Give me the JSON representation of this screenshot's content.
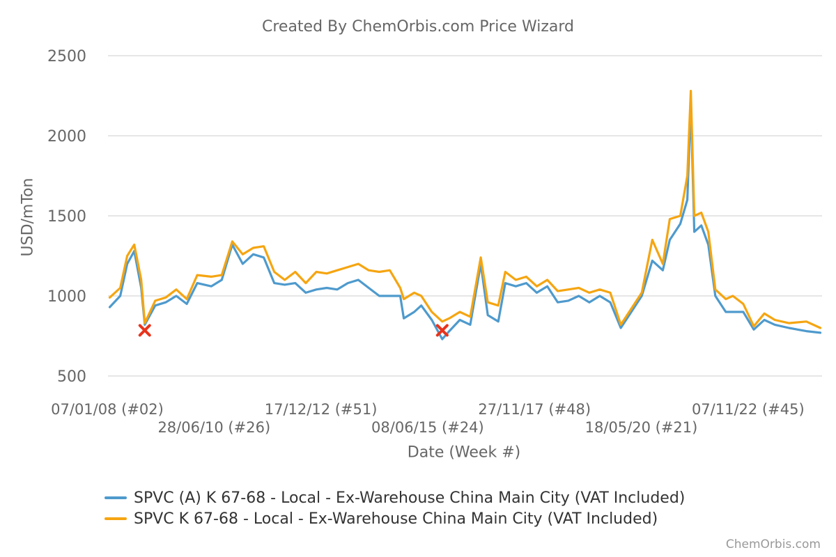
{
  "chart_data": {
    "type": "line",
    "title": "Created By ChemOrbis.com Price Wizard",
    "xlabel": "Date (Week #)",
    "ylabel": "USD/mTon",
    "ylim": [
      500,
      2500
    ],
    "yticks": [
      500,
      1000,
      1500,
      2000,
      2500
    ],
    "xticks": [
      "07/01/08 (#02)",
      "28/06/10 (#26)",
      "17/12/12 (#51)",
      "08/06/15 (#24)",
      "27/11/17 (#48)",
      "18/05/20 (#21)",
      "07/11/22 (#45)"
    ],
    "x_range": [
      "07/01/08 (#02)",
      "last week of 2024"
    ],
    "grid": "horizontal",
    "legend_position": "bottom-left",
    "series": [
      {
        "name": "SPVC (A) K 67-68 - Local - Ex-Warehouse China Main City (VAT Included)",
        "color": "#4e9acd",
        "points": [
          [
            "2008-01",
            930
          ],
          [
            "2008-04",
            1000
          ],
          [
            "2008-06",
            1200
          ],
          [
            "2008-08",
            1280
          ],
          [
            "2008-10",
            1050
          ],
          [
            "2008-11",
            820
          ],
          [
            "2009-02",
            940
          ],
          [
            "2009-05",
            960
          ],
          [
            "2009-08",
            1000
          ],
          [
            "2009-11",
            950
          ],
          [
            "2010-02",
            1080
          ],
          [
            "2010-06",
            1060
          ],
          [
            "2010-09",
            1100
          ],
          [
            "2010-12",
            1320
          ],
          [
            "2011-03",
            1200
          ],
          [
            "2011-06",
            1260
          ],
          [
            "2011-09",
            1240
          ],
          [
            "2011-12",
            1080
          ],
          [
            "2012-03",
            1070
          ],
          [
            "2012-06",
            1080
          ],
          [
            "2012-09",
            1020
          ],
          [
            "2012-12",
            1040
          ],
          [
            "2013-03",
            1050
          ],
          [
            "2013-06",
            1040
          ],
          [
            "2013-09",
            1080
          ],
          [
            "2013-12",
            1100
          ],
          [
            "2014-03",
            1050
          ],
          [
            "2014-06",
            1000
          ],
          [
            "2014-09",
            1000
          ],
          [
            "2014-12",
            1000
          ],
          [
            "2015-01",
            860
          ],
          [
            "2015-04",
            900
          ],
          [
            "2015-06",
            940
          ],
          [
            "2015-09",
            850
          ],
          [
            "2015-12",
            730
          ],
          [
            "2016-02",
            780
          ],
          [
            "2016-05",
            850
          ],
          [
            "2016-08",
            820
          ],
          [
            "2016-11",
            1200
          ],
          [
            "2017-01",
            880
          ],
          [
            "2017-04",
            840
          ],
          [
            "2017-06",
            1080
          ],
          [
            "2017-09",
            1060
          ],
          [
            "2017-12",
            1080
          ],
          [
            "2018-03",
            1020
          ],
          [
            "2018-06",
            1060
          ],
          [
            "2018-09",
            960
          ],
          [
            "2018-12",
            970
          ],
          [
            "2019-03",
            1000
          ],
          [
            "2019-06",
            960
          ],
          [
            "2019-09",
            1000
          ],
          [
            "2019-12",
            960
          ],
          [
            "2020-03",
            800
          ],
          [
            "2020-06",
            900
          ],
          [
            "2020-09",
            1000
          ],
          [
            "2020-12",
            1220
          ],
          [
            "2021-03",
            1160
          ],
          [
            "2021-05",
            1350
          ],
          [
            "2021-08",
            1450
          ],
          [
            "2021-10",
            1600
          ],
          [
            "2021-11",
            2200
          ],
          [
            "2021-12",
            1400
          ],
          [
            "2022-02",
            1440
          ],
          [
            "2022-04",
            1320
          ],
          [
            "2022-06",
            1000
          ],
          [
            "2022-09",
            900
          ],
          [
            "2022-11",
            900
          ],
          [
            "2023-02",
            900
          ],
          [
            "2023-05",
            790
          ],
          [
            "2023-08",
            850
          ],
          [
            "2023-11",
            820
          ],
          [
            "2024-03",
            800
          ],
          [
            "2024-08",
            780
          ],
          [
            "2024-12",
            770
          ]
        ]
      },
      {
        "name": "SPVC K 67-68 - Local - Ex-Warehouse China Main City (VAT Included)",
        "color": "#f5a511",
        "points": [
          [
            "2008-01",
            990
          ],
          [
            "2008-04",
            1050
          ],
          [
            "2008-06",
            1250
          ],
          [
            "2008-08",
            1320
          ],
          [
            "2008-10",
            1100
          ],
          [
            "2008-11",
            830
          ],
          [
            "2009-02",
            970
          ],
          [
            "2009-05",
            990
          ],
          [
            "2009-08",
            1040
          ],
          [
            "2009-11",
            980
          ],
          [
            "2010-02",
            1130
          ],
          [
            "2010-06",
            1120
          ],
          [
            "2010-09",
            1130
          ],
          [
            "2010-12",
            1340
          ],
          [
            "2011-03",
            1260
          ],
          [
            "2011-06",
            1300
          ],
          [
            "2011-09",
            1310
          ],
          [
            "2011-12",
            1150
          ],
          [
            "2012-03",
            1100
          ],
          [
            "2012-06",
            1150
          ],
          [
            "2012-09",
            1080
          ],
          [
            "2012-12",
            1150
          ],
          [
            "2013-03",
            1140
          ],
          [
            "2013-06",
            1160
          ],
          [
            "2013-09",
            1180
          ],
          [
            "2013-12",
            1200
          ],
          [
            "2014-03",
            1160
          ],
          [
            "2014-06",
            1150
          ],
          [
            "2014-09",
            1160
          ],
          [
            "2014-12",
            1050
          ],
          [
            "2015-01",
            980
          ],
          [
            "2015-04",
            1020
          ],
          [
            "2015-06",
            1000
          ],
          [
            "2015-09",
            900
          ],
          [
            "2015-12",
            840
          ],
          [
            "2016-02",
            860
          ],
          [
            "2016-05",
            900
          ],
          [
            "2016-08",
            870
          ],
          [
            "2016-11",
            1240
          ],
          [
            "2017-01",
            960
          ],
          [
            "2017-04",
            940
          ],
          [
            "2017-06",
            1150
          ],
          [
            "2017-09",
            1100
          ],
          [
            "2017-12",
            1120
          ],
          [
            "2018-03",
            1060
          ],
          [
            "2018-06",
            1100
          ],
          [
            "2018-09",
            1030
          ],
          [
            "2018-12",
            1040
          ],
          [
            "2019-03",
            1050
          ],
          [
            "2019-06",
            1020
          ],
          [
            "2019-09",
            1040
          ],
          [
            "2019-12",
            1020
          ],
          [
            "2020-03",
            820
          ],
          [
            "2020-06",
            920
          ],
          [
            "2020-09",
            1020
          ],
          [
            "2020-12",
            1350
          ],
          [
            "2021-03",
            1200
          ],
          [
            "2021-05",
            1480
          ],
          [
            "2021-08",
            1500
          ],
          [
            "2021-10",
            1750
          ],
          [
            "2021-11",
            2280
          ],
          [
            "2021-12",
            1500
          ],
          [
            "2022-02",
            1520
          ],
          [
            "2022-04",
            1400
          ],
          [
            "2022-06",
            1040
          ],
          [
            "2022-09",
            980
          ],
          [
            "2022-11",
            1000
          ],
          [
            "2023-02",
            950
          ],
          [
            "2023-05",
            810
          ],
          [
            "2023-08",
            890
          ],
          [
            "2023-11",
            850
          ],
          [
            "2024-03",
            830
          ],
          [
            "2024-08",
            840
          ],
          [
            "2024-12",
            800
          ]
        ]
      }
    ],
    "annotations": [
      {
        "type": "cross-marker",
        "color": "#e8341c",
        "x": "2008-11",
        "y": 785
      },
      {
        "type": "cross-marker",
        "color": "#e8341c",
        "x": "2015-12",
        "y": 785
      }
    ]
  },
  "credit": "ChemOrbis.com"
}
